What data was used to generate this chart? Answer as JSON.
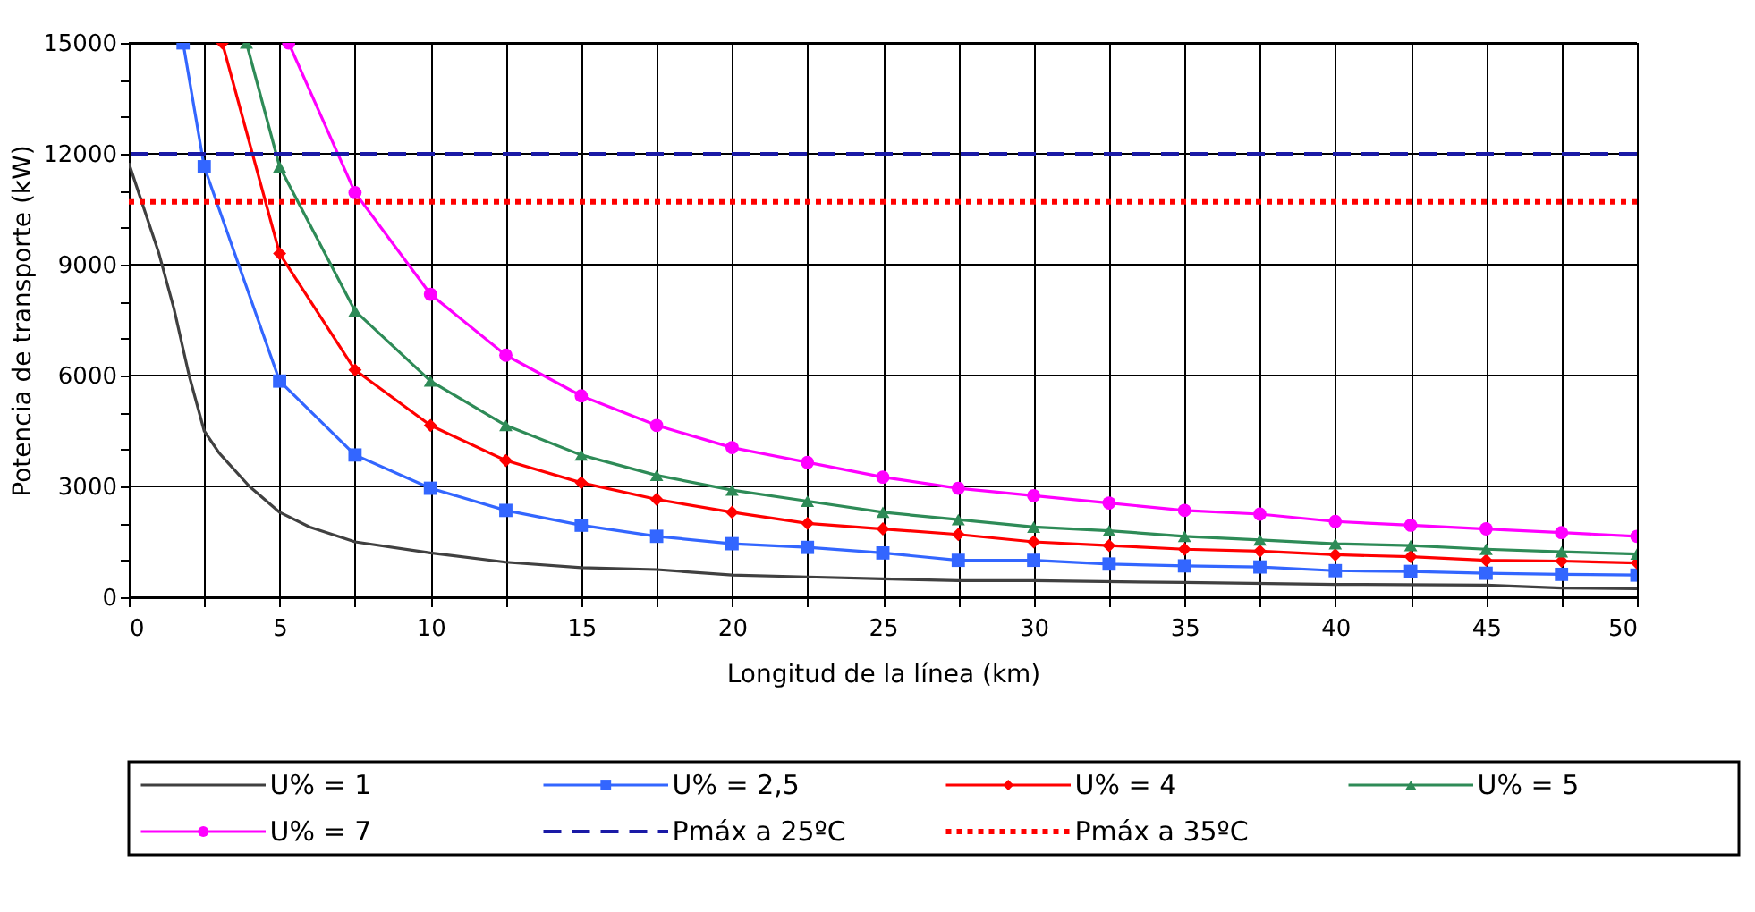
{
  "chart_data": {
    "type": "line",
    "xlabel": "Longitud de la línea (km)",
    "ylabel": "Potencia de transporte (kW)",
    "xlim": [
      0,
      50
    ],
    "ylim": [
      0,
      15000
    ],
    "xticks": [
      0,
      {
        "value": 2.5,
        "label": null
      },
      5,
      {
        "value": 7.5,
        "label": null
      },
      10,
      {
        "value": 12.5,
        "label": null
      },
      15,
      {
        "value": 17.5,
        "label": null
      },
      20,
      {
        "value": 22.5,
        "label": null
      },
      25,
      {
        "value": 27.5,
        "label": null
      },
      30,
      {
        "value": 32.5,
        "label": null
      },
      35,
      {
        "value": 37.5,
        "label": null
      },
      40,
      {
        "value": 42.5,
        "label": null
      },
      45,
      {
        "value": 47.5,
        "label": null
      },
      50
    ],
    "yticks": [
      0,
      {
        "value": 1000,
        "label": null
      },
      {
        "value": 2000,
        "label": null
      },
      3000,
      {
        "value": 4000,
        "label": null
      },
      {
        "value": 5000,
        "label": null
      },
      6000,
      {
        "value": 7000,
        "label": null
      },
      {
        "value": 8000,
        "label": null
      },
      9000,
      {
        "value": 10000,
        "label": null
      },
      {
        "value": 11000,
        "label": null
      },
      12000,
      {
        "value": 13000,
        "label": null
      },
      {
        "value": 14000,
        "label": null
      },
      15000
    ],
    "grid": true,
    "legend": "bottom",
    "series": [
      {
        "name": "U% = 1",
        "color": "#404040",
        "marker": "none",
        "x": [
          0,
          1,
          1.5,
          2,
          2.5,
          3,
          4,
          5,
          6,
          7.5,
          10,
          12.5,
          15,
          17.5,
          20,
          22.5,
          25,
          27.5,
          30,
          35,
          40,
          45,
          47.5,
          50
        ],
        "values": [
          11750,
          9300,
          7800,
          6000,
          4500,
          3900,
          3000,
          2300,
          1900,
          1500,
          1200,
          950,
          800,
          750,
          600,
          550,
          500,
          450,
          450,
          400,
          350,
          330,
          250,
          230
        ]
      },
      {
        "name": "U% = 2,5",
        "color": "#3366ff",
        "marker": "square",
        "x": [
          1.8,
          2.5,
          5,
          7.5,
          10,
          12.5,
          15,
          17.5,
          20,
          22.5,
          25,
          27.5,
          30,
          32.5,
          35,
          37.5,
          40,
          42.5,
          45,
          47.5,
          50
        ],
        "values": [
          15000,
          11650,
          5850,
          3850,
          2950,
          2350,
          1950,
          1650,
          1450,
          1350,
          1200,
          1000,
          1000,
          900,
          850,
          820,
          720,
          700,
          650,
          620,
          600
        ]
      },
      {
        "name": "U% = 4",
        "color": "#ff0000",
        "marker": "diamond",
        "x": [
          3.1,
          5,
          7.5,
          10,
          12.5,
          15,
          17.5,
          20,
          22.5,
          25,
          27.5,
          30,
          32.5,
          35,
          37.5,
          40,
          42.5,
          45,
          47.5,
          50
        ],
        "values": [
          15000,
          9300,
          6150,
          4650,
          3700,
          3100,
          2650,
          2300,
          2000,
          1850,
          1700,
          1500,
          1400,
          1300,
          1250,
          1150,
          1100,
          1000,
          980,
          930
        ]
      },
      {
        "name": "U% = 5",
        "color": "#2e8b57",
        "marker": "triangle",
        "x": [
          3.9,
          5,
          7.5,
          10,
          12.5,
          15,
          17.5,
          20,
          22.5,
          25,
          27.5,
          30,
          32.5,
          35,
          37.5,
          40,
          42.5,
          45,
          47.5,
          50
        ],
        "values": [
          15000,
          11650,
          7750,
          5850,
          4650,
          3850,
          3300,
          2900,
          2600,
          2300,
          2100,
          1900,
          1800,
          1650,
          1550,
          1450,
          1400,
          1300,
          1230,
          1170
        ]
      },
      {
        "name": "U% = 7",
        "color": "#ff00ff",
        "marker": "circle",
        "x": [
          5.3,
          7.5,
          10,
          12.5,
          15,
          17.5,
          20,
          22.5,
          25,
          27.5,
          30,
          32.5,
          35,
          37.5,
          40,
          42.5,
          45,
          47.5,
          50
        ],
        "values": [
          15000,
          10950,
          8200,
          6550,
          5450,
          4650,
          4050,
          3650,
          3250,
          2950,
          2750,
          2550,
          2350,
          2250,
          2050,
          1950,
          1850,
          1750,
          1650
        ]
      }
    ],
    "ref_lines": [
      {
        "axis": "y",
        "value": 12000,
        "label": "Pmáx a 25ºC",
        "color": "#1a1aa6",
        "line_style": "dashed"
      },
      {
        "axis": "y",
        "value": 10700,
        "label": "Pmáx a 35ºC",
        "color": "#ff0000",
        "line_style": "dotted"
      }
    ]
  }
}
